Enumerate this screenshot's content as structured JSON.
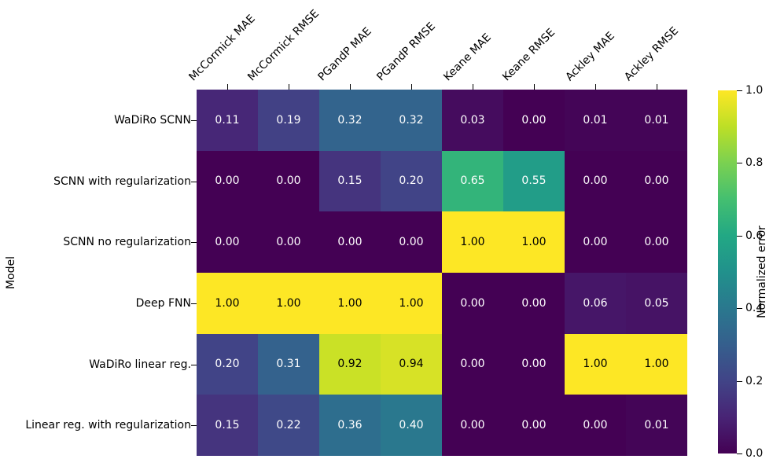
{
  "chart_data": {
    "type": "heatmap",
    "title": "",
    "xlabel": "",
    "ylabel": "Model",
    "columns": [
      "McCormick MAE",
      "McCormick RMSE",
      "PGandP MAE",
      "PGandP RMSE",
      "Keane MAE",
      "Keane RMSE",
      "Ackley MAE",
      "Ackley RMSE"
    ],
    "rows": [
      "WaDiRo SCNN",
      "SCNN with regularization",
      "SCNN no regularization",
      "Deep FNN",
      "WaDiRo linear reg.",
      "Linear reg. with regularization"
    ],
    "values": [
      [
        0.11,
        0.19,
        0.32,
        0.32,
        0.03,
        0.0,
        0.01,
        0.01
      ],
      [
        0.0,
        0.0,
        0.15,
        0.2,
        0.65,
        0.55,
        0.0,
        0.0
      ],
      [
        0.0,
        0.0,
        0.0,
        0.0,
        1.0,
        1.0,
        0.0,
        0.0
      ],
      [
        1.0,
        1.0,
        1.0,
        1.0,
        0.0,
        0.0,
        0.06,
        0.05
      ],
      [
        0.2,
        0.31,
        0.92,
        0.94,
        0.0,
        0.0,
        1.0,
        1.0
      ],
      [
        0.15,
        0.22,
        0.36,
        0.4,
        0.0,
        0.0,
        0.0,
        0.01
      ]
    ],
    "annotation_decimals": 2,
    "value_range": [
      0.0,
      1.0
    ],
    "legend_position": "right-colorbar",
    "grid": false,
    "colorbar": {
      "label": "Normalized error",
      "ticks": [
        "1.0",
        "0.8",
        "0.6",
        "0.4",
        "0.2",
        "0.0"
      ],
      "min": 0.0,
      "max": 1.0
    },
    "colormap": {
      "name": "viridis",
      "stops": [
        "#440154",
        "#482475",
        "#414487",
        "#355f8d",
        "#2a788e",
        "#21918c",
        "#22a884",
        "#44bf70",
        "#7ad151",
        "#bddf26",
        "#fde725"
      ]
    },
    "annotation_text_colors": {
      "on_dark": "#ffffff",
      "on_light": "#000000"
    }
  }
}
